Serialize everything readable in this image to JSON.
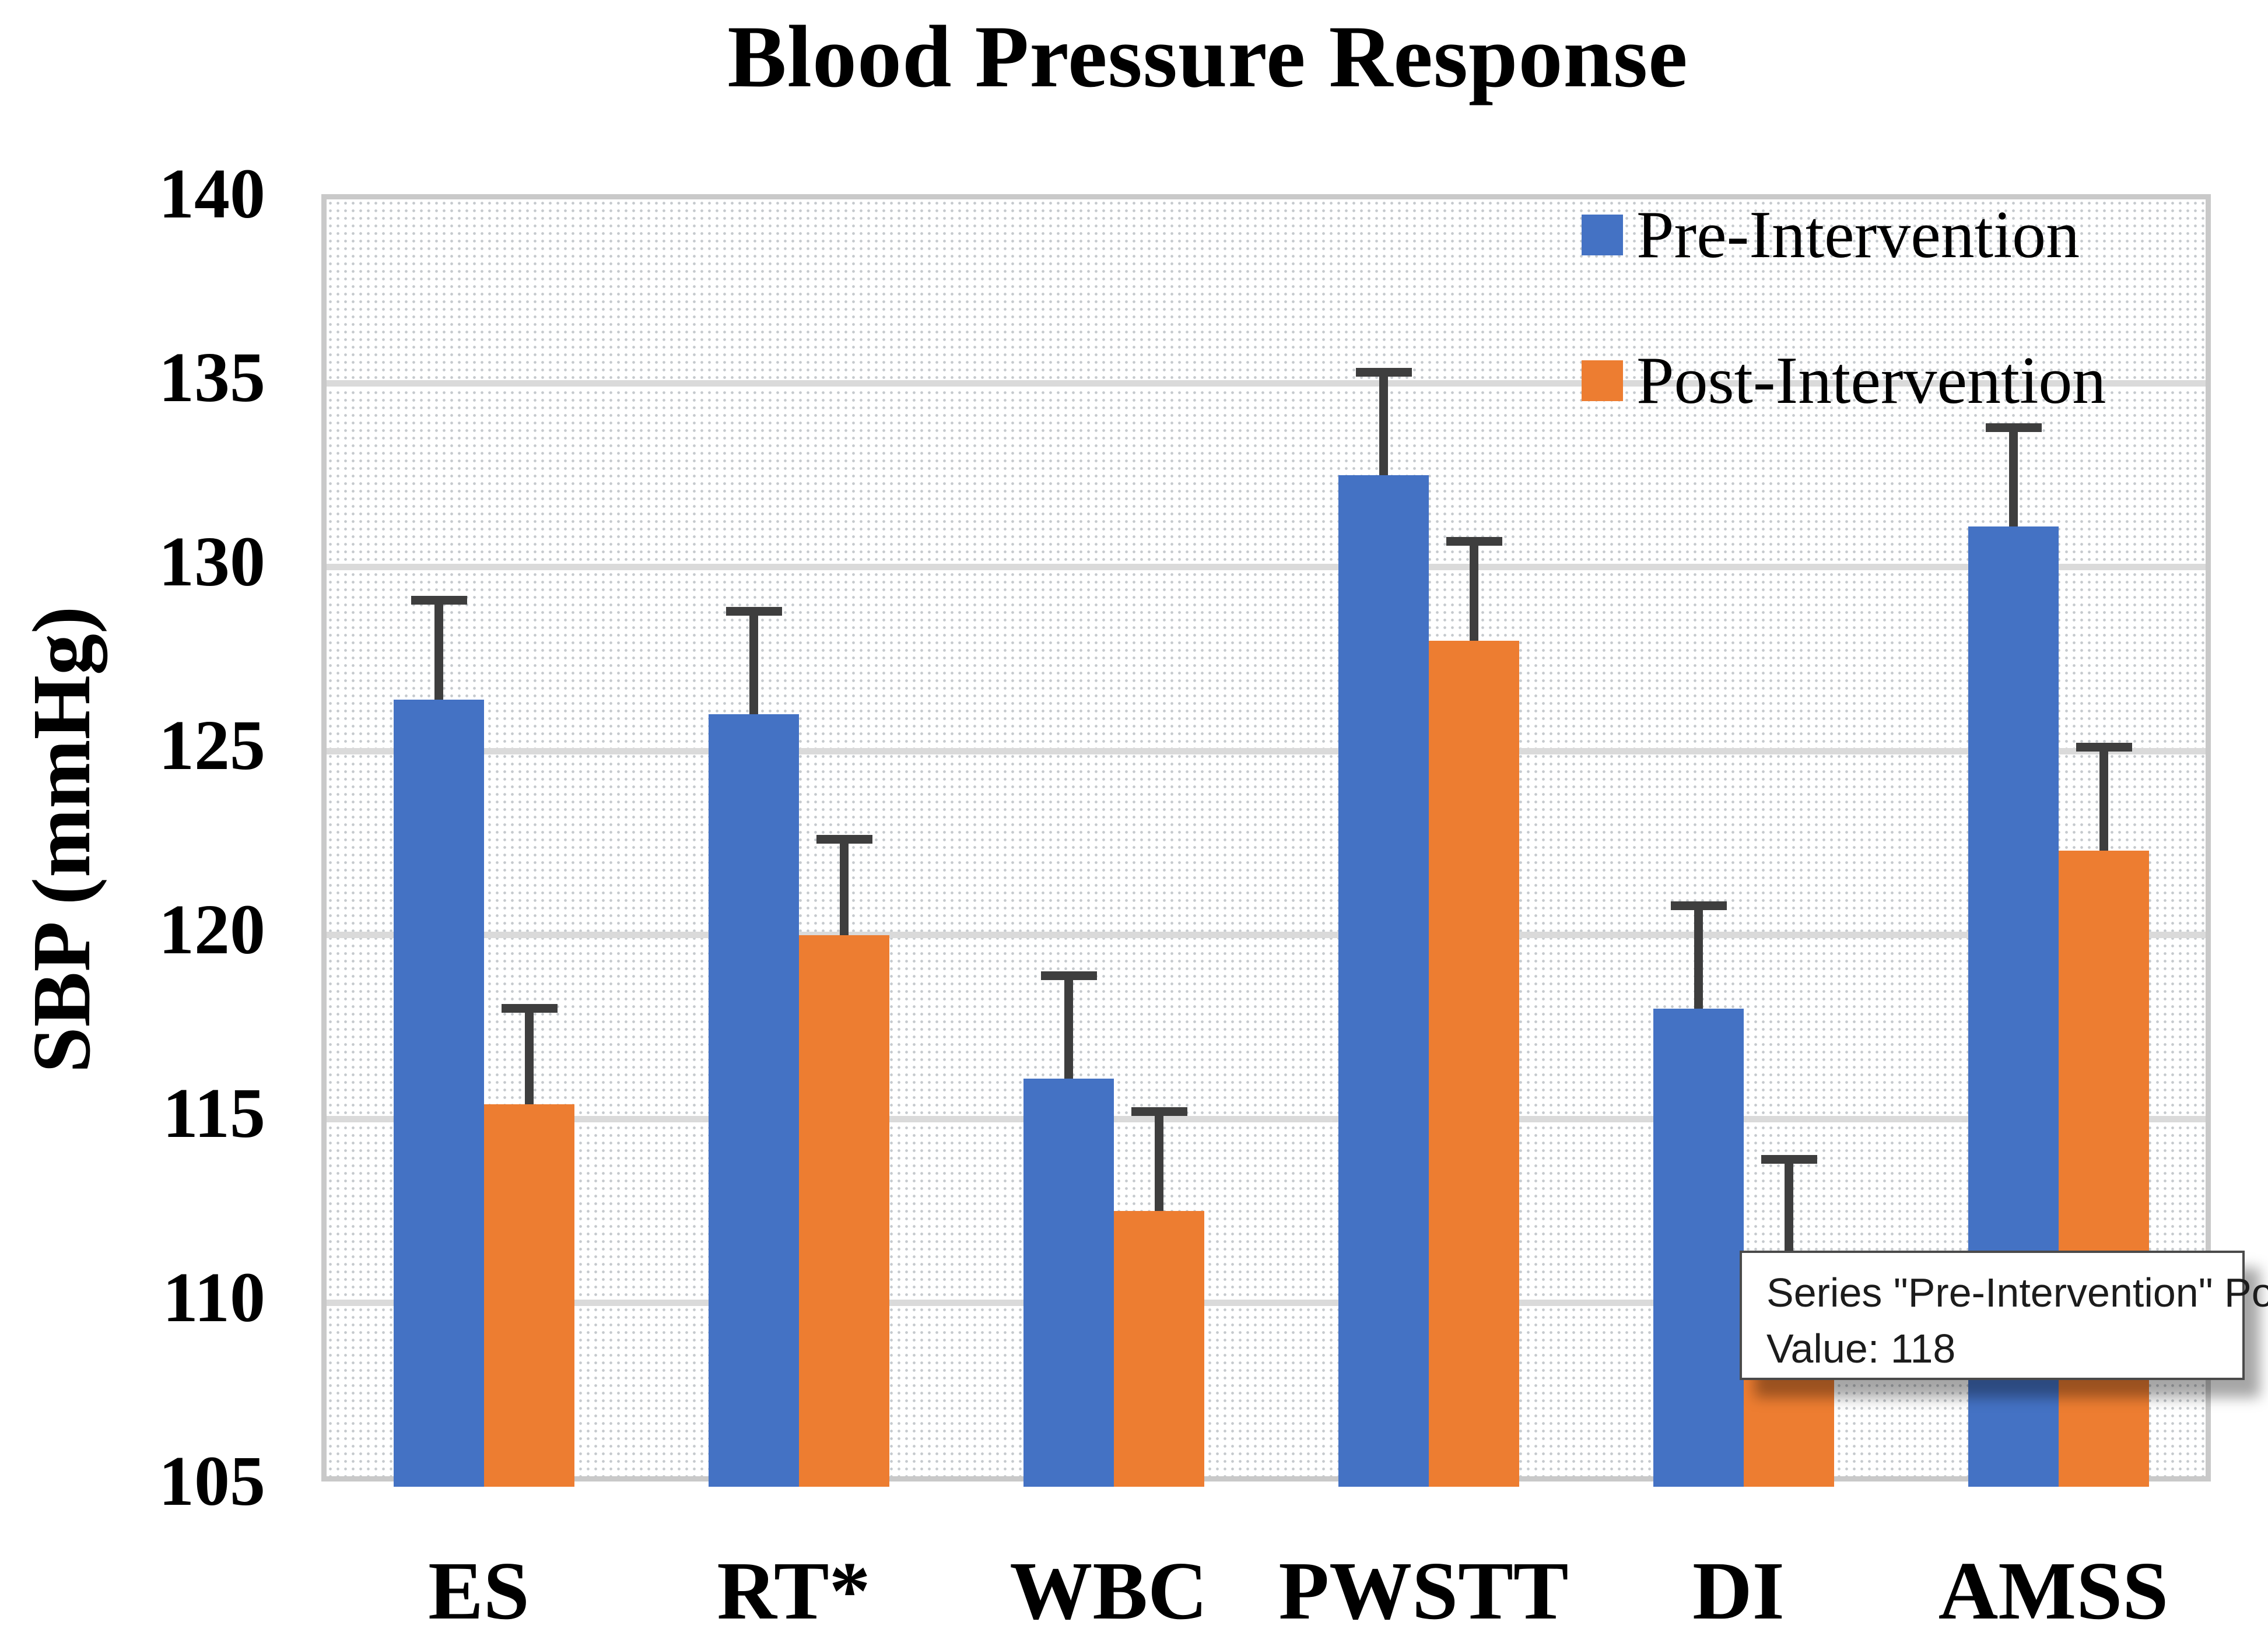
{
  "chart_data": {
    "type": "bar",
    "title": "Blood Pressure Response",
    "ylabel": "SBP (mmHg)",
    "xlabel": "",
    "ylim": [
      105,
      140
    ],
    "ytick_step": 5,
    "yticks": [
      105,
      110,
      115,
      120,
      125,
      130,
      135,
      140
    ],
    "grid": true,
    "legend_position": "top-right-inside",
    "categories": [
      "ES",
      "RT*",
      "WBC",
      "PWSTT",
      "DI",
      "AMSS"
    ],
    "series": [
      {
        "name": "Pre-Intervention",
        "color": "#4472C4",
        "values": [
          126.4,
          126.0,
          116.1,
          132.5,
          118,
          131.1
        ],
        "error_upper": [
          2.7,
          2.8,
          2.8,
          2.8,
          2.8,
          2.7
        ]
      },
      {
        "name": "Post-Intervention",
        "color": "#ED7D31",
        "values": [
          115.4,
          120.0,
          112.5,
          128.0,
          111.2,
          122.3
        ],
        "error_upper": [
          2.6,
          2.6,
          2.7,
          2.7,
          2.7,
          2.8
        ]
      }
    ],
    "note": "Top of the Post-Intervention DI bar is hidden behind the tooltip overlay; its value is estimated from its error bar."
  },
  "tooltip": {
    "line1": "Series \"Pre-Intervention\" Point \"DI\"",
    "line2": "Value: 118",
    "attached_series": "Pre-Intervention",
    "attached_point": "DI"
  },
  "colors": {
    "pre_series": "#4472C4",
    "post_series": "#ED7D31",
    "error_bar": "#3E3E3E",
    "gridline": "#DADADA",
    "plot_border": "#C9C9C9",
    "tooltip_border": "#4A4A4A",
    "text": "#000000"
  }
}
